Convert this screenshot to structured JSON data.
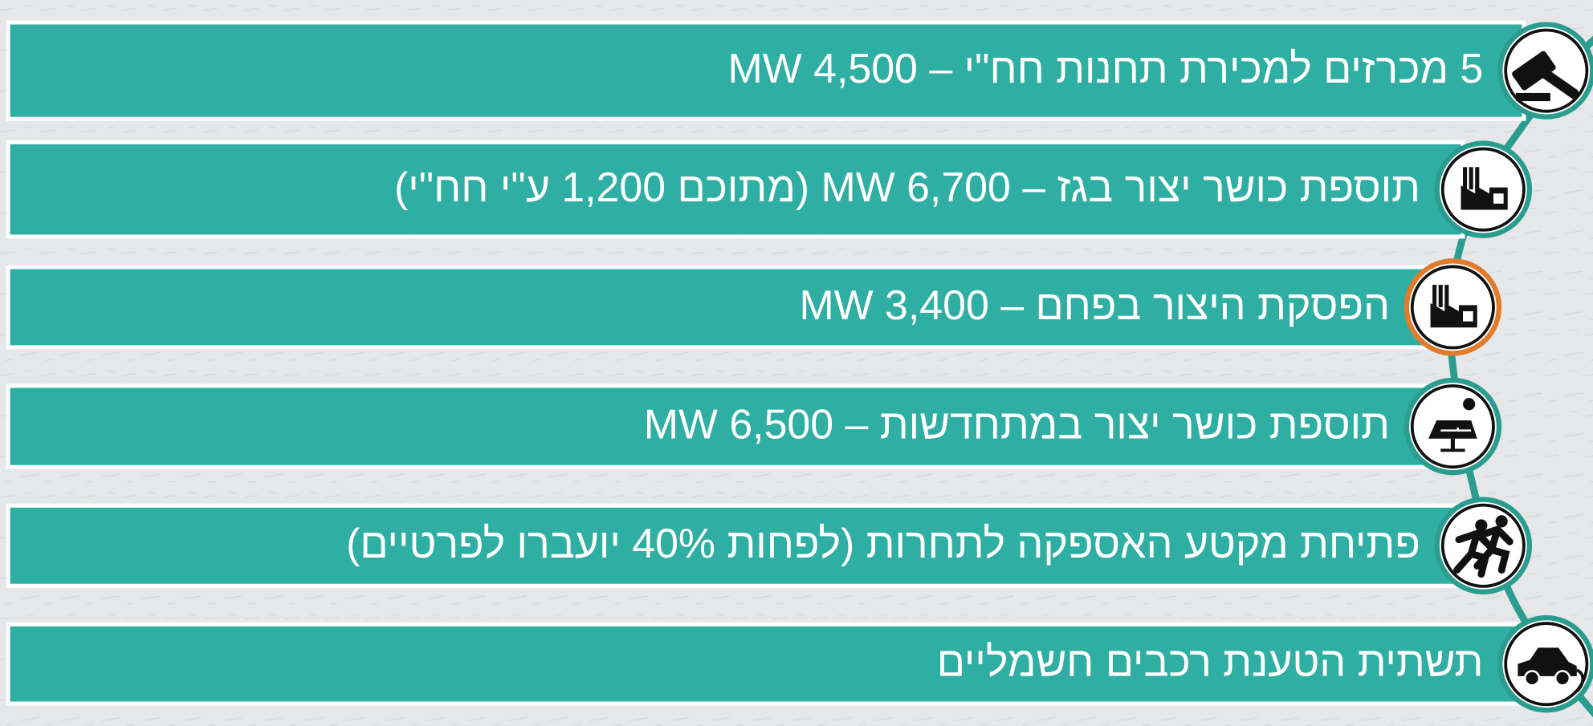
{
  "items": [
    {
      "text": "5 מכרזים למכירת תחנות חח\"י  –  4,500 MW"
    },
    {
      "text": "תוספת כושר יצור בגז – 6,700 MW (מתוכם 1,200 ע\"י חח\"י)"
    },
    {
      "text": "הפסקת היצור בפחם – 3,400 MW"
    },
    {
      "text": "תוספת כושר יצור במתחדשות – 6,500 MW"
    },
    {
      "text": "פתיחת מקטע האספקה לתחרות (לפחות 40% יועברו לפרטיים)"
    },
    {
      "text": "תשתית הטענת רכבים חשמליים"
    }
  ]
}
